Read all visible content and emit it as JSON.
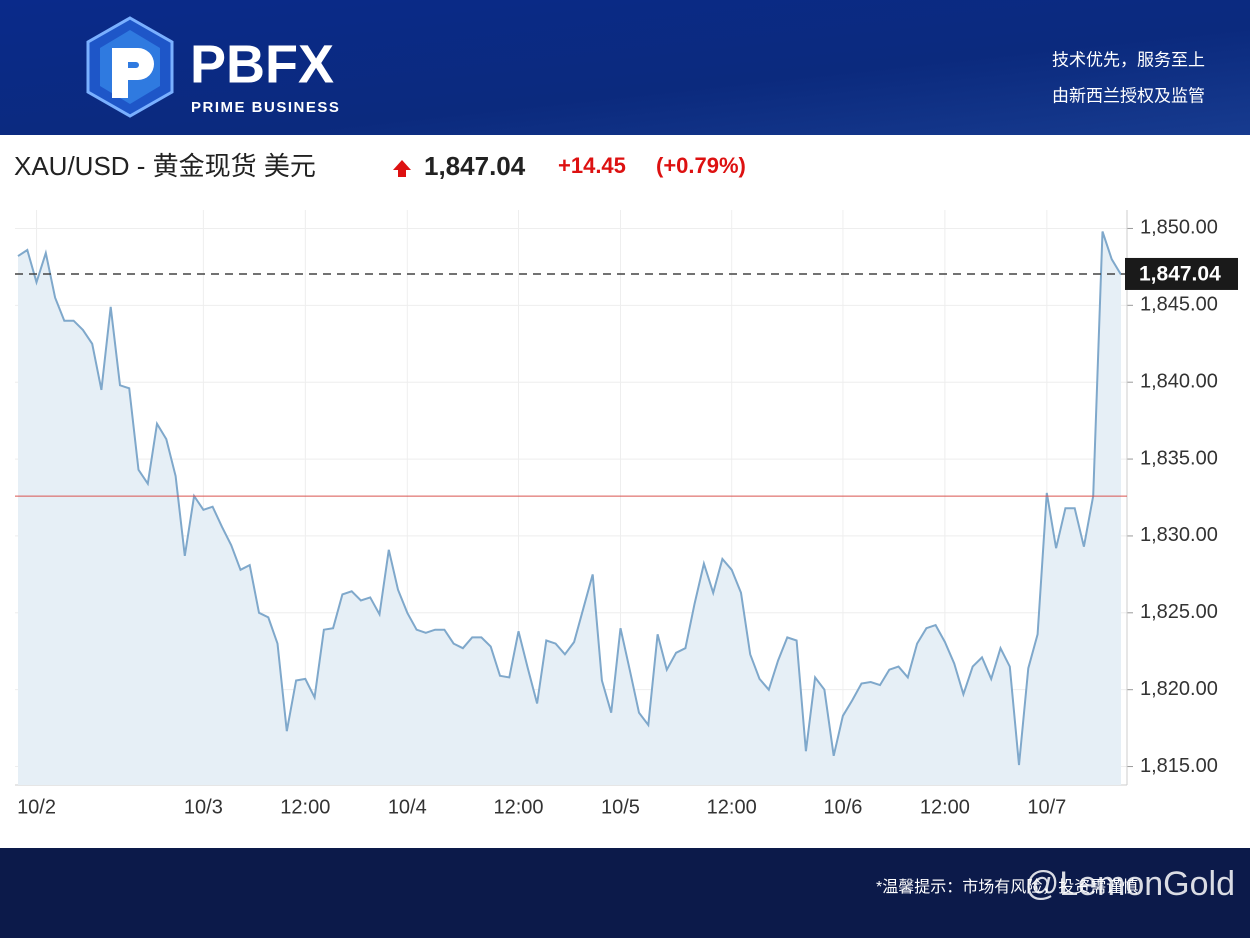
{
  "header": {
    "brand": "PBFX",
    "brand_sub": "PRIME BUSINESS",
    "slogan": "技术优先，服务至上",
    "license": "由新西兰授权及监管"
  },
  "quote": {
    "symbol": "XAU/USD - 黄金现货 美元",
    "price": "1,847.04",
    "change": "+14.45",
    "change_pct": "(+0.79%)"
  },
  "chart_data": {
    "type": "line",
    "categories": [
      null,
      null,
      "10/2",
      null,
      null,
      null,
      null,
      null,
      null,
      null,
      null,
      null,
      null,
      null,
      null,
      null,
      null,
      null,
      null,
      null,
      "10/3",
      null,
      null,
      null,
      null,
      null,
      null,
      null,
      null,
      null,
      null,
      "12:00",
      null,
      null,
      null,
      null,
      null,
      null,
      null,
      null,
      null,
      null,
      "10/4",
      null,
      null,
      null,
      null,
      null,
      null,
      null,
      null,
      null,
      null,
      null,
      "12:00",
      null,
      null,
      null,
      null,
      null,
      null,
      null,
      null,
      null,
      null,
      "10/5",
      null,
      null,
      null,
      null,
      null,
      null,
      null,
      null,
      null,
      null,
      null,
      "12:00",
      null,
      null,
      null,
      null,
      null,
      null,
      null,
      null,
      null,
      null,
      null,
      "10/6",
      null,
      null,
      null,
      null,
      null,
      null,
      null,
      null,
      null,
      null,
      "12:00",
      null,
      null,
      null,
      null,
      null,
      null,
      null,
      null,
      null,
      null,
      "10/7",
      null,
      null,
      null,
      null,
      null,
      null,
      null,
      null
    ],
    "values": [
      1848.2,
      1848.6,
      1846.5,
      1848.4,
      1845.5,
      1844.0,
      1844.0,
      1843.4,
      1842.5,
      1839.5,
      1844.9,
      1839.8,
      1839.6,
      1834.3,
      1833.4,
      1837.3,
      1836.3,
      1833.9,
      1828.7,
      1832.6,
      1831.7,
      1831.9,
      1830.6,
      1829.4,
      1827.8,
      1828.1,
      1825.0,
      1824.7,
      1823.0,
      1817.3,
      1820.6,
      1820.7,
      1819.5,
      1823.9,
      1824.0,
      1826.2,
      1826.4,
      1825.8,
      1826.0,
      1824.9,
      1829.1,
      1826.5,
      1825.0,
      1823.9,
      1823.7,
      1823.9,
      1823.9,
      1823.0,
      1822.7,
      1823.4,
      1823.4,
      1822.8,
      1820.9,
      1820.8,
      1823.8,
      1821.4,
      1819.1,
      1823.2,
      1823.0,
      1822.3,
      1823.1,
      1825.3,
      1827.5,
      1820.6,
      1818.5,
      1824.0,
      1821.3,
      1818.5,
      1817.7,
      1823.6,
      1821.3,
      1822.4,
      1822.7,
      1825.6,
      1828.2,
      1826.3,
      1828.5,
      1827.8,
      1826.3,
      1822.3,
      1820.7,
      1820.0,
      1821.9,
      1823.4,
      1823.2,
      1816.0,
      1820.8,
      1820.0,
      1815.7,
      1818.3,
      1819.3,
      1820.4,
      1820.5,
      1820.3,
      1821.3,
      1821.5,
      1820.8,
      1823.0,
      1824.0,
      1824.2,
      1823.1,
      1821.7,
      1819.7,
      1821.5,
      1822.1,
      1820.7,
      1822.7,
      1821.5,
      1815.1,
      1821.4,
      1823.6,
      1832.8,
      1829.2,
      1831.8,
      1831.8,
      1829.3,
      1832.6,
      1849.8,
      1848.0,
      1847.0
    ],
    "color": "#7fa8cb",
    "area_color": "#e6eff6",
    "ylim": [
      1813.8,
      1851.2
    ],
    "yticks": [
      {
        "value": 1815,
        "label": "1,815.00"
      },
      {
        "value": 1820,
        "label": "1,820.00"
      },
      {
        "value": 1825,
        "label": "1,825.00"
      },
      {
        "value": 1830,
        "label": "1,830.00"
      },
      {
        "value": 1835,
        "label": "1,835.00"
      },
      {
        "value": 1840,
        "label": "1,840.00"
      },
      {
        "value": 1845,
        "label": "1,845.00"
      },
      {
        "value": 1850,
        "label": "1,850.00"
      }
    ],
    "last_price": {
      "value": 1847.04,
      "label": "1,847.04"
    },
    "reference_line": 1832.59,
    "reference_color": "#d9534f",
    "grid": true
  },
  "footer": {
    "notice": "*温馨提示：市场有风险，投资需谨慎",
    "watermark": "@LemonGold"
  }
}
